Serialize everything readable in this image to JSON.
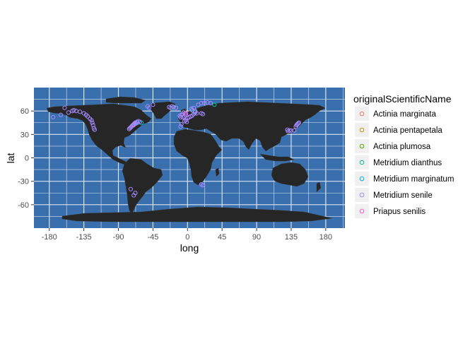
{
  "chart_data": {
    "type": "scatter",
    "base_layer": "world-map",
    "xlabel": "long",
    "ylabel": "lat",
    "xlim": [
      -200,
      205
    ],
    "ylim": [
      -90,
      90
    ],
    "x_ticks": [
      -180,
      -135,
      -90,
      -45,
      0,
      45,
      90,
      135,
      180
    ],
    "y_ticks": [
      -60,
      -30,
      0,
      30,
      60
    ],
    "grid": true,
    "legend_position": "right",
    "legend_title": "originalScientificName",
    "colors": {
      "panel": "#3A6FAE",
      "land": "#262626",
      "grid": "#d9e3f0"
    },
    "series": [
      {
        "name": "Actinia marginata",
        "color": "#F8766D",
        "points": [
          [
            -70,
            42
          ]
        ]
      },
      {
        "name": "Actinia pentapetala",
        "color": "#C49A00",
        "points": [
          [
            -72,
            41
          ]
        ]
      },
      {
        "name": "Actinia plumosa",
        "color": "#53B400",
        "points": [
          [
            -5,
            58
          ]
        ]
      },
      {
        "name": "Metridium dianthus",
        "color": "#00C094",
        "points": [
          [
            -60,
            45
          ],
          [
            10,
            59
          ],
          [
            5,
            62
          ],
          [
            35,
            68
          ],
          [
            -20,
            64
          ]
        ]
      },
      {
        "name": "Metridium marginatum",
        "color": "#00B6EB",
        "points": [
          [
            -68,
            44
          ],
          [
            -65,
            45
          ]
        ]
      },
      {
        "name": "Metridium senile",
        "color": "#A58AFF",
        "points": [
          [
            -175,
            52
          ],
          [
            -165,
            55
          ],
          [
            -160,
            64
          ],
          [
            -155,
            58
          ],
          [
            -150,
            60
          ],
          [
            -148,
            61
          ],
          [
            -145,
            60
          ],
          [
            -140,
            59
          ],
          [
            -135,
            57
          ],
          [
            -132,
            55
          ],
          [
            -130,
            53
          ],
          [
            -127,
            50
          ],
          [
            -125,
            48
          ],
          [
            -124,
            45
          ],
          [
            -123,
            42
          ],
          [
            -122,
            38
          ],
          [
            -121,
            36
          ],
          [
            -70,
            -48
          ],
          [
            -68,
            -45
          ],
          [
            -74,
            -40
          ],
          [
            -72,
            41
          ],
          [
            -71,
            42
          ],
          [
            -70,
            43
          ],
          [
            -69,
            44
          ],
          [
            -68,
            45
          ],
          [
            -67,
            44
          ],
          [
            -73,
            40
          ],
          [
            -74,
            39
          ],
          [
            -75,
            38
          ],
          [
            -76,
            37
          ],
          [
            -66,
            46
          ],
          [
            -64,
            47
          ],
          [
            -62,
            46
          ],
          [
            -50,
            64
          ],
          [
            -52,
            66
          ],
          [
            -45,
            68
          ],
          [
            -24,
            65
          ],
          [
            -22,
            64
          ],
          [
            -20,
            66
          ],
          [
            -18,
            65
          ],
          [
            -15,
            64
          ],
          [
            -10,
            54
          ],
          [
            -8,
            55
          ],
          [
            -6,
            56
          ],
          [
            -5,
            58
          ],
          [
            -3,
            57
          ],
          [
            -2,
            55
          ],
          [
            -4,
            53
          ],
          [
            -6,
            52
          ],
          [
            -9,
            52
          ],
          [
            0,
            51
          ],
          [
            2,
            52
          ],
          [
            4,
            53
          ],
          [
            6,
            54
          ],
          [
            8,
            56
          ],
          [
            10,
            58
          ],
          [
            12,
            57
          ],
          [
            10,
            60
          ],
          [
            6,
            61
          ],
          [
            5,
            63
          ],
          [
            8,
            64
          ],
          [
            14,
            68
          ],
          [
            18,
            70
          ],
          [
            22,
            70
          ],
          [
            26,
            71
          ],
          [
            30,
            70
          ],
          [
            20,
            56
          ],
          [
            18,
            57
          ],
          [
            -2,
            48
          ],
          [
            -4,
            47
          ],
          [
            -1,
            46
          ],
          [
            -8,
            43
          ],
          [
            -9,
            40
          ],
          [
            18,
            -34
          ],
          [
            20,
            -35
          ],
          [
            130,
            36
          ],
          [
            131,
            34
          ],
          [
            133,
            35
          ],
          [
            135,
            35
          ],
          [
            139,
            35
          ],
          [
            141,
            40
          ],
          [
            142,
            42
          ],
          [
            143,
            43
          ],
          [
            144,
            44
          ],
          [
            145,
            45
          ]
        ]
      },
      {
        "name": "Priapus senilis",
        "color": "#FB61D7",
        "points": [
          [
            -2,
            57
          ]
        ]
      }
    ]
  }
}
